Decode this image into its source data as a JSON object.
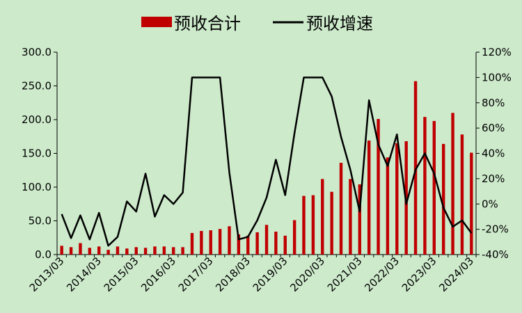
{
  "chart_data": {
    "type": "bar+line",
    "title": "",
    "legend": {
      "placement": "top",
      "items": [
        {
          "label": "预收合计",
          "kind": "bar",
          "color": "#c00000"
        },
        {
          "label": "预收增速",
          "kind": "line",
          "color": "#000000"
        }
      ]
    },
    "background": "#cdeacb",
    "grid": false,
    "left_axis": {
      "min": 0,
      "max": 300,
      "ticks": [
        "0.0",
        "50.0",
        "100.0",
        "150.0",
        "200.0",
        "250.0",
        "300.0"
      ]
    },
    "right_axis": {
      "min": -40,
      "max": 120,
      "ticks": [
        "-40%",
        "-20%",
        "0%",
        "20%",
        "40%",
        "60%",
        "80%",
        "100%",
        "120%"
      ]
    },
    "x_tick_labels": [
      "2013/03",
      "2014/03",
      "2015/03",
      "2016/03",
      "2017/03",
      "2018/03",
      "2019/03",
      "2020/03",
      "2021/03",
      "2022/03",
      "2023/03",
      "2024/03"
    ],
    "categories": [
      "2013/03",
      "2013/06",
      "2013/09",
      "2013/12",
      "2014/03",
      "2014/06",
      "2014/09",
      "2014/12",
      "2015/03",
      "2015/06",
      "2015/09",
      "2015/12",
      "2016/03",
      "2016/06",
      "2016/09",
      "2016/12",
      "2017/03",
      "2017/06",
      "2017/09",
      "2017/12",
      "2018/03",
      "2018/06",
      "2018/09",
      "2018/12",
      "2019/03",
      "2019/06",
      "2019/09",
      "2019/12",
      "2020/03",
      "2020/06",
      "2020/09",
      "2020/12",
      "2021/03",
      "2021/06",
      "2021/09",
      "2021/12",
      "2022/03",
      "2022/06",
      "2022/09",
      "2022/12",
      "2023/03",
      "2023/06",
      "2023/09",
      "2023/12",
      "2024/03"
    ],
    "series": [
      {
        "name": "预收合计",
        "type": "bar",
        "axis": "left",
        "color": "#c00000",
        "values": [
          13,
          11,
          17,
          10,
          12,
          7,
          12,
          9,
          11,
          10,
          12,
          12,
          11,
          11,
          32,
          35,
          36,
          38,
          42,
          30,
          28,
          33,
          44,
          34,
          28,
          51,
          87,
          88,
          112,
          93,
          136,
          112,
          104,
          169,
          201,
          144,
          165,
          168,
          257,
          204,
          198,
          164,
          210,
          178,
          151
        ]
      },
      {
        "name": "预收增速",
        "type": "line",
        "axis": "right",
        "color": "#000000",
        "values": [
          -8,
          -27,
          -9,
          -28,
          -7,
          -33,
          -26,
          2,
          -6,
          24,
          -10,
          7,
          0,
          9,
          100,
          100,
          100,
          100,
          25,
          -28,
          -26,
          -13,
          5,
          35,
          7,
          56,
          100,
          100,
          100,
          85,
          53,
          27,
          -6,
          82,
          47,
          30,
          55,
          0,
          27,
          40,
          24,
          -3,
          -18,
          -13,
          -23
        ]
      }
    ]
  }
}
